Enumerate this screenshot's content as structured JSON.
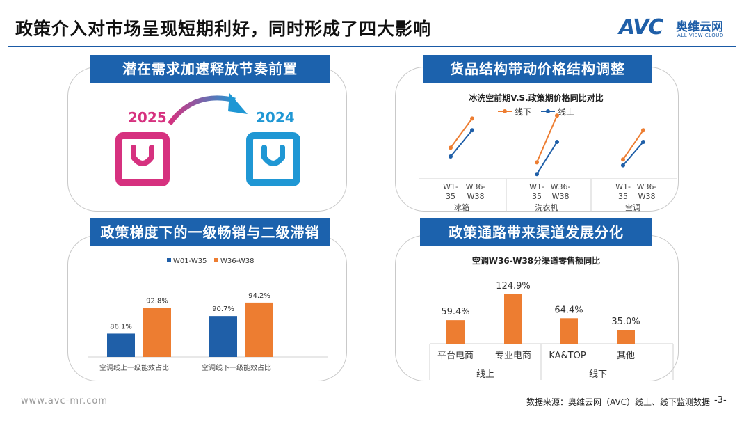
{
  "page": {
    "title": "政策介入对市场呈现短期利好，同时形成了四大影响",
    "logo_mark": "AVC",
    "logo_cn": "奥维云网",
    "logo_en": "ALL VIEW CLOUD",
    "footer_url": "www.avc-mr.com",
    "footer_source": "数据来源：奥维云网（AVC）线上、线下监测数据",
    "page_number": "-3-",
    "accent_color": "#1c62ad",
    "pink": "#d6317f",
    "blue": "#1f97d4",
    "orange": "#ed7d31",
    "series_blue": "#1f5fa8"
  },
  "panel1": {
    "title": "潜在需求加速释放节奏前置",
    "year_from": "2025",
    "year_to": "2024"
  },
  "chart_data": [
    {
      "type": "line",
      "panel_title": "货品结构带动价格结构调整",
      "title": "冰洗空前期V.S.政策期价格同比对比",
      "legend": "top",
      "groups": [
        "冰箱",
        "洗衣机",
        "空调"
      ],
      "periods": [
        "W1-35",
        "W36-W38"
      ],
      "series": [
        {
          "name": "线下",
          "color": "#ed7d31",
          "values": [
            [
              3,
              13
            ],
            [
              -2,
              14
            ],
            [
              -1,
              9
            ]
          ]
        },
        {
          "name": "线上",
          "color": "#1f5fa8",
          "values": [
            [
              0,
              9
            ],
            [
              -6,
              5
            ],
            [
              -3,
              5
            ]
          ]
        }
      ]
    },
    {
      "type": "bar",
      "panel_title": "政策梯度下的一级畅销与二级滞销",
      "categories": [
        "空调线上一级能效占比",
        "空调线下一级能效占比"
      ],
      "series": [
        {
          "name": "W01-W35",
          "color": "#1f5fa8",
          "values": [
            86.1,
            90.7
          ],
          "labels": [
            "86.1%",
            "90.7%"
          ]
        },
        {
          "name": "W36-W38",
          "color": "#ed7d31",
          "values": [
            92.8,
            94.2
          ],
          "labels": [
            "92.8%",
            "94.2%"
          ]
        }
      ],
      "legend": "top",
      "ylim": [
        80,
        100
      ]
    },
    {
      "type": "bar",
      "panel_title": "政策通路带来渠道发展分化",
      "title": "空调W36-W38分渠道零售额同比",
      "categories": [
        "平台电商",
        "专业电商",
        "KA&TOP",
        "其他"
      ],
      "groups": [
        {
          "label": "线上",
          "span": 2
        },
        {
          "label": "线下",
          "span": 2
        }
      ],
      "values": [
        59.4,
        124.9,
        64.4,
        35.0
      ],
      "labels": [
        "59.4%",
        "124.9%",
        "64.4%",
        "35.0%"
      ],
      "color": "#ed7d31"
    }
  ]
}
